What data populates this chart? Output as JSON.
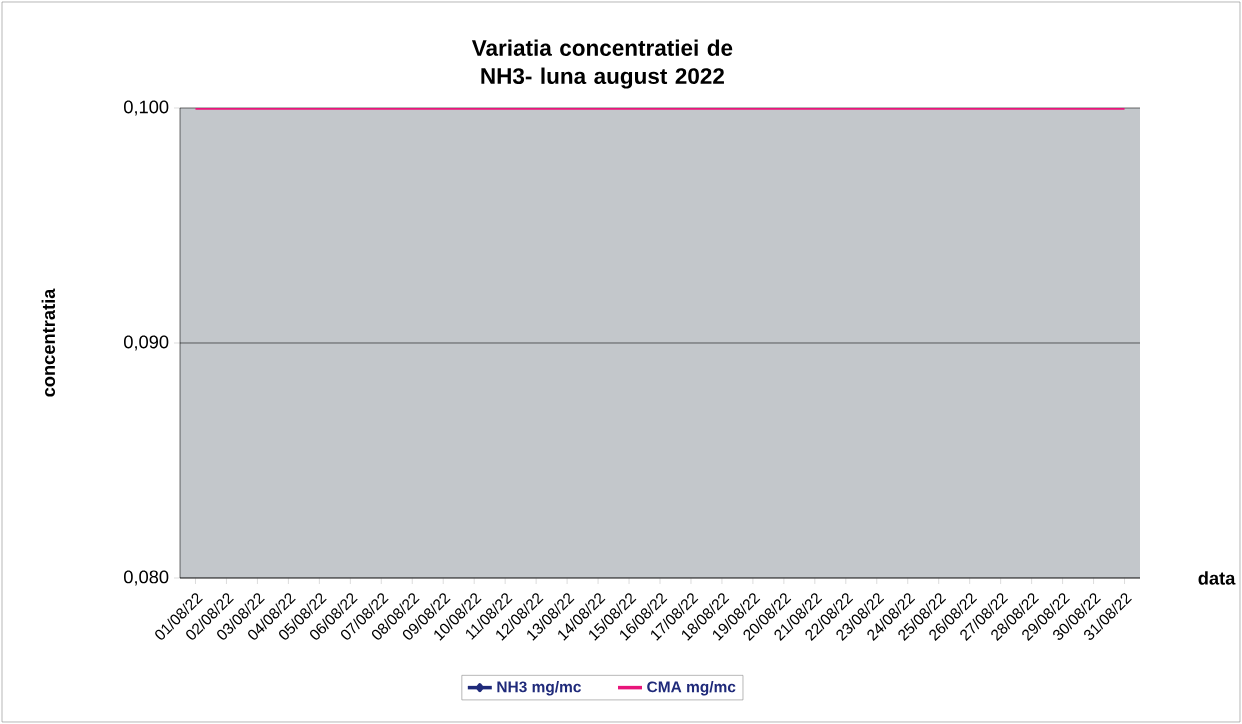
{
  "chart_data": {
    "type": "line",
    "title": "Variatia concentratiei de NH3- luna august 2022",
    "xlabel": "data",
    "ylabel": "concentratia",
    "categories": [
      "01/08/22",
      "02/08/22",
      "03/08/22",
      "04/08/22",
      "05/08/22",
      "06/08/22",
      "07/08/22",
      "08/08/22",
      "09/08/22",
      "10/08/22",
      "11/08/22",
      "12/08/22",
      "13/08/22",
      "14/08/22",
      "15/08/22",
      "16/08/22",
      "17/08/22",
      "18/08/22",
      "19/08/22",
      "20/08/22",
      "21/08/22",
      "22/08/22",
      "23/08/22",
      "24/08/22",
      "25/08/22",
      "26/08/22",
      "27/08/22",
      "28/08/22",
      "29/08/22",
      "30/08/22",
      "31/08/22"
    ],
    "series": [
      {
        "name": "NH3 mg/mc",
        "color": "#1f2a7a",
        "marker": "diamond",
        "values": [
          null,
          null,
          null,
          null,
          null,
          null,
          null,
          null,
          null,
          null,
          null,
          null,
          null,
          null,
          null,
          null,
          null,
          null,
          null,
          null,
          null,
          null,
          null,
          null,
          null,
          null,
          null,
          null,
          null,
          null,
          null
        ]
      },
      {
        "name": "CMA mg/mc",
        "color": "#e8147a",
        "marker": "none",
        "values": [
          0.1,
          0.1,
          0.1,
          0.1,
          0.1,
          0.1,
          0.1,
          0.1,
          0.1,
          0.1,
          0.1,
          0.1,
          0.1,
          0.1,
          0.1,
          0.1,
          0.1,
          0.1,
          0.1,
          0.1,
          0.1,
          0.1,
          0.1,
          0.1,
          0.1,
          0.1,
          0.1,
          0.1,
          0.1,
          0.1,
          0.1
        ]
      }
    ],
    "ylim": [
      0.08,
      0.1
    ],
    "yticks": [
      {
        "value": 0.08,
        "label": "0,080"
      },
      {
        "value": 0.09,
        "label": "0,090"
      },
      {
        "value": 0.1,
        "label": "0,100"
      }
    ],
    "grid": "y",
    "legend": "bottom"
  }
}
